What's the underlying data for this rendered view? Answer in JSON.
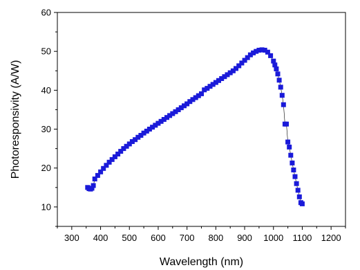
{
  "chart_data": {
    "type": "scatter",
    "title": "",
    "xlabel": "Wavelength (nm)",
    "ylabel": "Photoresponsivity (A/W)",
    "xlim": [
      250,
      1250
    ],
    "ylim": [
      5,
      60
    ],
    "xticks": [
      300,
      400,
      500,
      600,
      700,
      800,
      900,
      1000,
      1100,
      1200
    ],
    "yticks": [
      10,
      20,
      30,
      40,
      50,
      60
    ],
    "grid": false,
    "legend": "none",
    "marker_color": "#1a1ad9",
    "series": [
      {
        "points": [
          [
            355,
            15.0
          ],
          [
            360,
            14.7
          ],
          [
            365,
            14.6
          ],
          [
            370,
            14.8
          ],
          [
            375,
            15.5
          ],
          [
            380,
            17.2
          ],
          [
            390,
            18.1
          ],
          [
            400,
            19.0
          ],
          [
            410,
            19.9
          ],
          [
            420,
            20.7
          ],
          [
            430,
            21.5
          ],
          [
            440,
            22.2
          ],
          [
            450,
            22.9
          ],
          [
            460,
            23.6
          ],
          [
            470,
            24.3
          ],
          [
            480,
            25.0
          ],
          [
            490,
            25.6
          ],
          [
            500,
            26.2
          ],
          [
            510,
            26.8
          ],
          [
            520,
            27.3
          ],
          [
            530,
            27.9
          ],
          [
            540,
            28.4
          ],
          [
            550,
            29.0
          ],
          [
            560,
            29.5
          ],
          [
            570,
            30.0
          ],
          [
            580,
            30.5
          ],
          [
            590,
            31.0
          ],
          [
            600,
            31.5
          ],
          [
            610,
            32.0
          ],
          [
            620,
            32.5
          ],
          [
            630,
            33.0
          ],
          [
            640,
            33.5
          ],
          [
            650,
            34.0
          ],
          [
            660,
            34.5
          ],
          [
            670,
            35.0
          ],
          [
            680,
            35.5
          ],
          [
            690,
            36.0
          ],
          [
            700,
            36.5
          ],
          [
            710,
            37.1
          ],
          [
            720,
            37.6
          ],
          [
            730,
            38.1
          ],
          [
            740,
            38.6
          ],
          [
            750,
            39.1
          ],
          [
            760,
            40.1
          ],
          [
            770,
            40.5
          ],
          [
            780,
            41.0
          ],
          [
            790,
            41.5
          ],
          [
            800,
            42.0
          ],
          [
            810,
            42.5
          ],
          [
            820,
            43.0
          ],
          [
            830,
            43.5
          ],
          [
            840,
            44.0
          ],
          [
            850,
            44.5
          ],
          [
            860,
            45.0
          ],
          [
            870,
            45.6
          ],
          [
            880,
            46.3
          ],
          [
            890,
            47.0
          ],
          [
            900,
            47.7
          ],
          [
            910,
            48.4
          ],
          [
            920,
            49.1
          ],
          [
            930,
            49.6
          ],
          [
            940,
            50.0
          ],
          [
            950,
            50.3
          ],
          [
            960,
            50.4
          ],
          [
            970,
            50.3
          ],
          [
            980,
            49.8
          ],
          [
            990,
            48.9
          ],
          [
            1000,
            47.5
          ],
          [
            1005,
            46.5
          ],
          [
            1010,
            45.5
          ],
          [
            1015,
            44.2
          ],
          [
            1020,
            42.6
          ],
          [
            1025,
            40.8
          ],
          [
            1030,
            38.7
          ],
          [
            1035,
            36.3
          ],
          [
            1040,
            31.3
          ],
          [
            1045,
            31.3
          ],
          [
            1050,
            26.7
          ],
          [
            1055,
            25.4
          ],
          [
            1060,
            23.3
          ],
          [
            1065,
            21.3
          ],
          [
            1070,
            19.5
          ],
          [
            1075,
            17.8
          ],
          [
            1080,
            16.0
          ],
          [
            1085,
            14.3
          ],
          [
            1090,
            12.6
          ],
          [
            1095,
            11.1
          ],
          [
            1100,
            10.8
          ]
        ]
      }
    ]
  }
}
